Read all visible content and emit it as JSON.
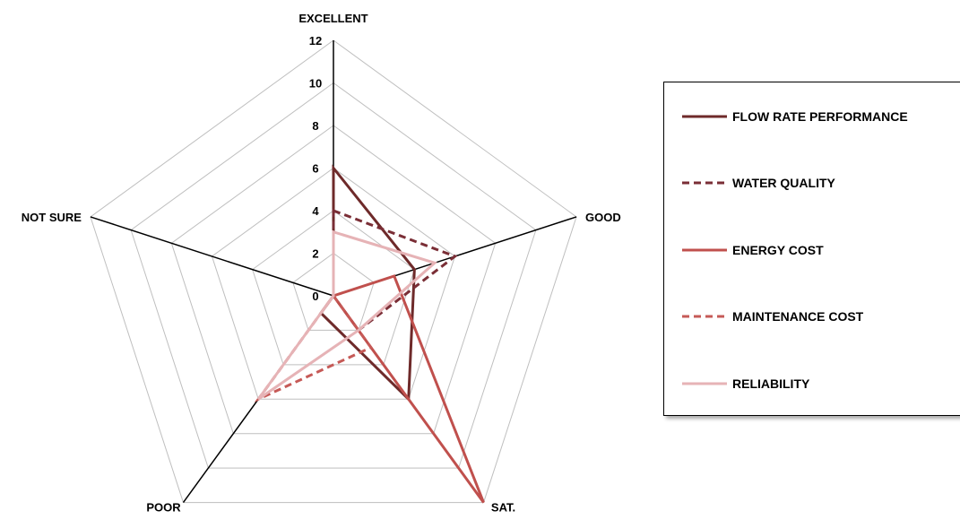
{
  "chart_data": {
    "type": "radar",
    "categories": [
      "EXCELLENT",
      "GOOD",
      "SAT.",
      "POOR",
      "NOT SURE"
    ],
    "rlim": [
      0,
      12
    ],
    "ticks": [
      "0",
      "2",
      "4",
      "6",
      "8",
      "10",
      "12"
    ],
    "grid": true,
    "legend_position": "right",
    "series": [
      {
        "name": "FLOW RATE PERFORMANCE",
        "values": [
          6,
          4,
          6,
          1,
          0
        ],
        "color": "#6e2a2a",
        "dash": "solid"
      },
      {
        "name": "WATER QUALITY",
        "values": [
          4,
          6,
          2,
          0,
          0
        ],
        "color": "#7a2e36",
        "dash": "dashed"
      },
      {
        "name": "ENERGY COST",
        "values": [
          0,
          3,
          12,
          0,
          0
        ],
        "color": "#c0504d",
        "dash": "solid"
      },
      {
        "name": "MAINTENANCE COST",
        "values": [
          0,
          0,
          3,
          6,
          0
        ],
        "color": "#c65a57",
        "dash": "dashed"
      },
      {
        "name": "RELIABILITY",
        "values": [
          3,
          5,
          2,
          6,
          0
        ],
        "color": "#e6b3b6",
        "dash": "solid"
      }
    ]
  }
}
